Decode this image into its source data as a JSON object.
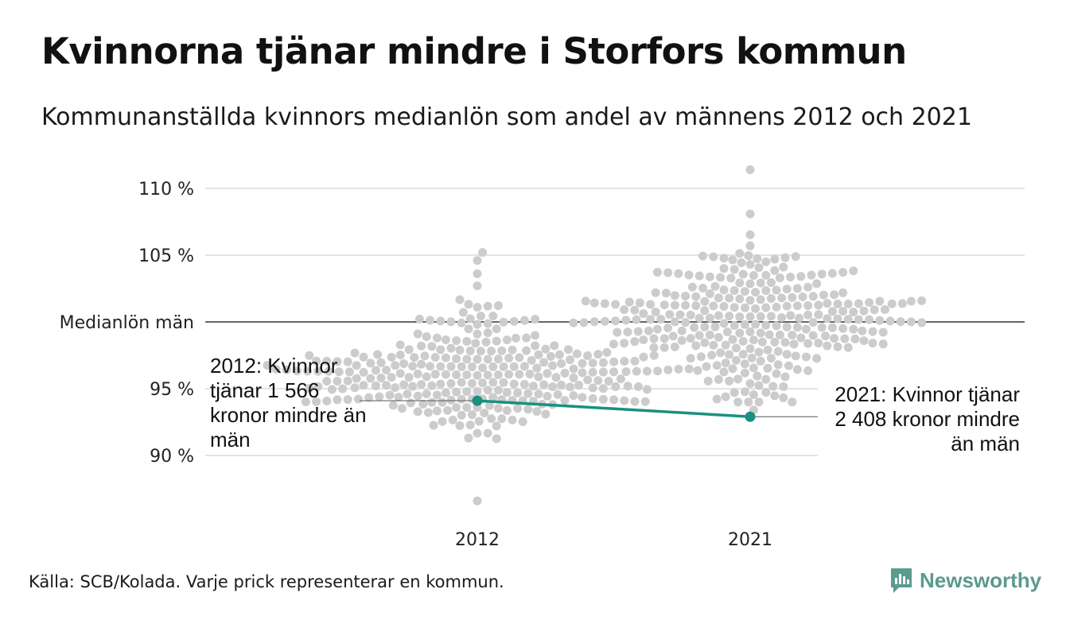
{
  "title": "Kvinnorna tjänar mindre i Storfors kommun",
  "subtitle": "Kommunanställda kvinnors medianlön som andel av männens 2012 och 2021",
  "source": "Källa: SCB/Kolada. Varje prick representerar en kommun.",
  "brand": "Newsworthy",
  "colors": {
    "dots": "#cccccc",
    "highlight": "#1a9080",
    "brand": "#5a9a8f",
    "grid": "#e3e3e3",
    "reference": "#333333"
  },
  "chart_data": {
    "type": "scatter",
    "subtype": "beeswarm",
    "categories": [
      "2012",
      "2021"
    ],
    "y_ticks": [
      {
        "value": 90,
        "label": "90 %"
      },
      {
        "value": 95,
        "label": "95 %"
      },
      {
        "value": 105,
        "label": "105 %"
      },
      {
        "value": 110,
        "label": "110 %"
      }
    ],
    "reference_line": {
      "value": 100,
      "label": "Medianlön män"
    },
    "ylim": [
      86,
      111.5
    ],
    "highlight": {
      "name": "Storfors",
      "values": [
        {
          "x": "2012",
          "y": 94.1
        },
        {
          "x": "2021",
          "y": 92.9
        }
      ]
    },
    "annotations": [
      {
        "x": "2012",
        "text": "2012: Kvinnor tjänar 1 566 kronor mindre än män"
      },
      {
        "x": "2021",
        "text": "2021: Kvinnor tjänar 2 408 kronor mindre än män"
      }
    ],
    "distribution": [
      {
        "category": "2012",
        "n": 290,
        "median": 96.0,
        "spread": 2.3,
        "min": 86.6,
        "max": 105.2
      },
      {
        "category": "2021",
        "n": 290,
        "median": 100.4,
        "spread": 2.5,
        "min": 93.4,
        "max": 111.4
      }
    ],
    "grid": true
  }
}
